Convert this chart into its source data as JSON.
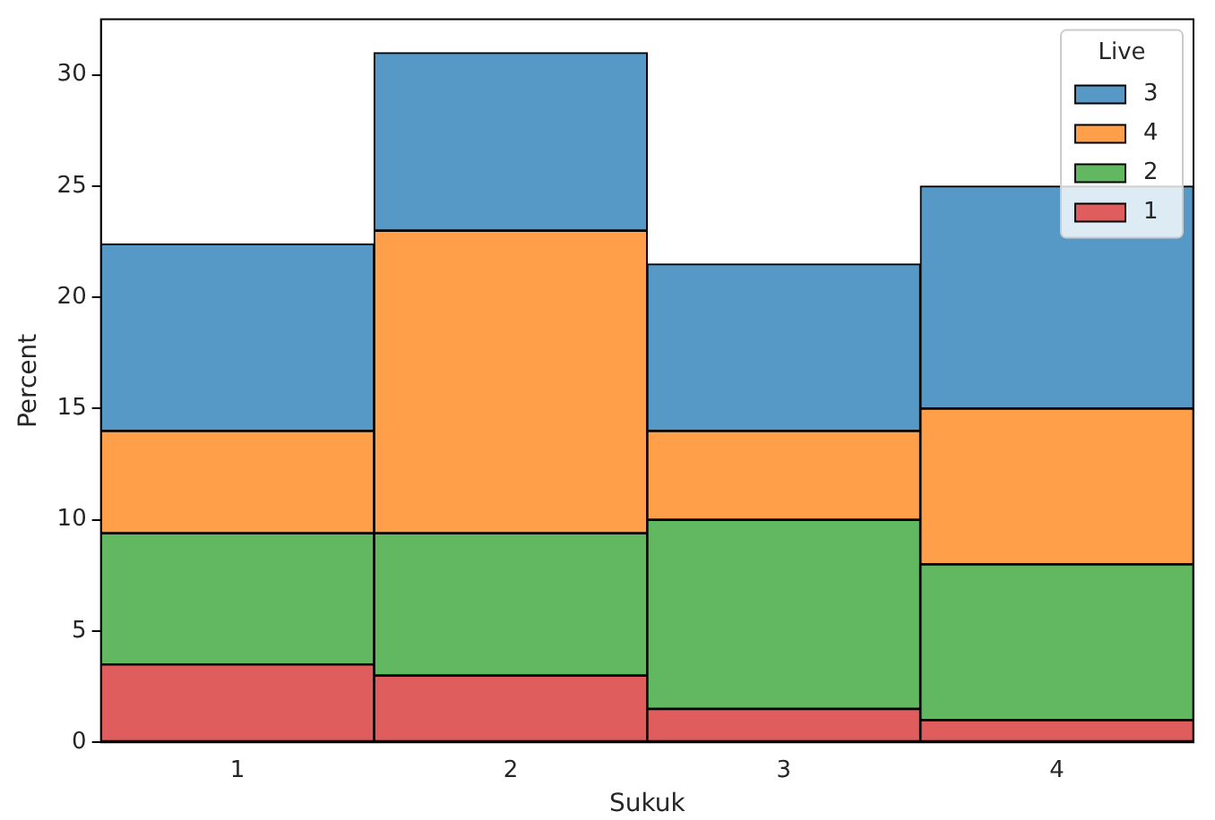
{
  "chart_data": {
    "type": "bar",
    "stacked": true,
    "xlabel": "Sukuk",
    "ylabel": "Percent",
    "legend_title": "Live",
    "legend": "top right",
    "grid": false,
    "categories": [
      "1",
      "2",
      "3",
      "4"
    ],
    "ylim": [
      0,
      32.5
    ],
    "yticks": [
      0,
      5,
      10,
      15,
      20,
      25,
      30
    ],
    "series": [
      {
        "name": "1",
        "color": "#e05d5e",
        "values": [
          3.5,
          3.0,
          1.5,
          1.0
        ]
      },
      {
        "name": "2",
        "color": "#61b861",
        "values": [
          5.9,
          6.4,
          8.5,
          7.0
        ]
      },
      {
        "name": "4",
        "color": "#ff9f4a",
        "values": [
          4.6,
          13.6,
          4.0,
          7.0
        ]
      },
      {
        "name": "3",
        "color": "#5799c6",
        "values": [
          8.4,
          8.0,
          7.5,
          10.0
        ]
      }
    ]
  }
}
